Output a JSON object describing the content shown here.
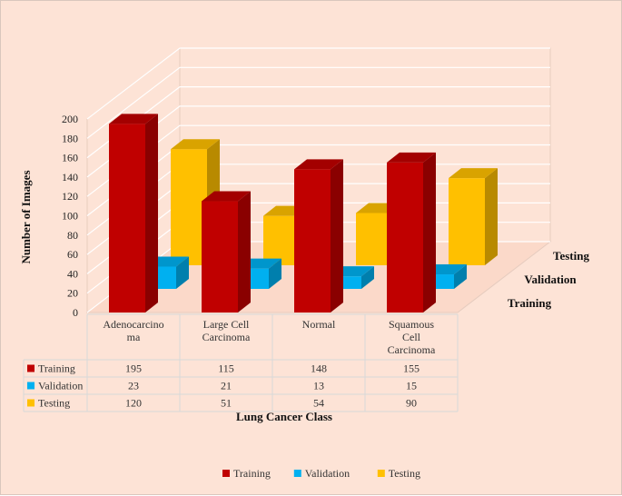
{
  "chart_data": {
    "type": "bar",
    "style": "3d-clustered-column-with-data-table",
    "categories": [
      "Adenocarcino ma",
      "Large Cell Carcinoma",
      "Normal",
      "Squamous Cell Carcinoma"
    ],
    "series": [
      {
        "name": "Training",
        "values": [
          195,
          115,
          148,
          155
        ],
        "color": "#c00000"
      },
      {
        "name": "Validation",
        "values": [
          23,
          21,
          13,
          15
        ],
        "color": "#00b0f0"
      },
      {
        "name": "Testing",
        "values": [
          120,
          51,
          54,
          90
        ],
        "color": "#ffc000"
      }
    ],
    "depth_labels": [
      "Training",
      "Validation",
      "Testing"
    ],
    "xlabel": "Lung Cancer Class",
    "ylabel": "Number of Images",
    "ylim": [
      0,
      200
    ],
    "yticks": [
      0,
      20,
      40,
      60,
      80,
      100,
      120,
      140,
      160,
      180,
      200
    ],
    "grid": true,
    "legend": "bottom",
    "background": "#fde3d6"
  }
}
